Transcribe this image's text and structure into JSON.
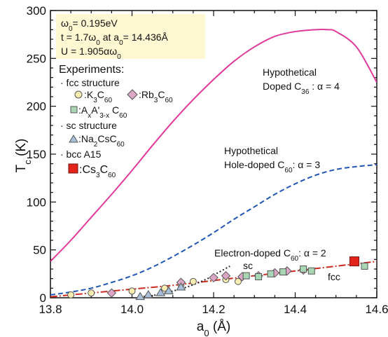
{
  "chart_data": {
    "type": "line",
    "xlabel": "a0 (Å)",
    "ylabel": "Tc (K)",
    "xlim": [
      13.8,
      14.6
    ],
    "ylim": [
      0,
      300
    ],
    "x_ticks": [
      "13.8",
      "14.0",
      "14.2",
      "14.4",
      "14.6"
    ],
    "y_ticks": [
      "0",
      "50",
      "100",
      "150",
      "200",
      "250",
      "300"
    ],
    "parameters": {
      "line1": "ω0= 0.195eV",
      "line2": "t = 1.7ω0  at  a0= 14.436Å",
      "line3": "U = 1.905αω0"
    },
    "legend": {
      "title": "Experiments:",
      "fcc_header": "· fcc structure",
      "k3c60": ":K3C60",
      "rb3c60": ":Rb3C60",
      "axa3c60": ":AxA'3-x C60",
      "sc_header": "· sc structure",
      "na2cs": ":Na2CsC60",
      "bcc_header": "· bcc A15",
      "cs3c60": ":Cs3C60"
    },
    "curve_labels": {
      "c36_line1": "Hypothetical",
      "c36_line2": "Doped C36 : α = 4",
      "hole_line1": "Hypothetical",
      "hole_line2": "Hole-doped C60: α = 3",
      "electron": "Electron-doped C60: α = 2",
      "sc": "sc",
      "fcc": "fcc"
    },
    "series": [
      {
        "id": "c36",
        "color": "#e0399b",
        "style": "solid",
        "x": [
          13.8,
          13.85,
          13.9,
          13.95,
          14.0,
          14.05,
          14.1,
          14.15,
          14.2,
          14.25,
          14.3,
          14.35,
          14.4,
          14.45,
          14.48,
          14.5,
          14.55,
          14.6
        ],
        "y": [
          38,
          60,
          84,
          108,
          133,
          159,
          184,
          207,
          228,
          247,
          262,
          273,
          278,
          280,
          280,
          278,
          262,
          225
        ]
      },
      {
        "id": "hole",
        "color": "#1f56b5",
        "style": "dashed",
        "x": [
          13.8,
          13.85,
          13.9,
          13.95,
          14.0,
          14.05,
          14.1,
          14.15,
          14.2,
          14.25,
          14.3,
          14.35,
          14.4,
          14.45,
          14.5,
          14.55,
          14.6
        ],
        "y": [
          3,
          6,
          10,
          16,
          23,
          32,
          43,
          55,
          68,
          82,
          95,
          108,
          119,
          128,
          134,
          137,
          139
        ]
      },
      {
        "id": "electron_fcc",
        "color": "#cc2a1e",
        "style": "dashdot",
        "x": [
          13.8,
          13.9,
          14.0,
          14.1,
          14.2,
          14.3,
          14.4,
          14.5,
          14.6
        ],
        "y": [
          1,
          5,
          9,
          13,
          18,
          23,
          28,
          33,
          38
        ]
      },
      {
        "id": "electron_sc",
        "color": "#222222",
        "style": "dotted",
        "x": [
          14.02,
          14.06,
          14.1,
          14.14,
          14.18,
          14.21,
          14.24
        ],
        "y": [
          1,
          3,
          7,
          12,
          19,
          26,
          33
        ]
      }
    ],
    "experiments": {
      "k3c60": {
        "marker": "circle",
        "color": "#f7edb0",
        "points": [
          [
            13.85,
            3
          ],
          [
            13.9,
            5
          ],
          [
            14.0,
            7
          ],
          [
            14.08,
            10
          ],
          [
            14.12,
            14
          ],
          [
            14.15,
            17
          ],
          [
            14.23,
            19
          ],
          [
            14.26,
            17
          ]
        ]
      },
      "rb3c60": {
        "marker": "diamond",
        "color": "#dca7c7",
        "points": [
          [
            13.95,
            5
          ],
          [
            14.12,
            16
          ],
          [
            14.2,
            21
          ],
          [
            14.23,
            23
          ],
          [
            14.27,
            22
          ],
          [
            14.31,
            23
          ],
          [
            14.35,
            26
          ],
          [
            14.38,
            28
          ],
          [
            14.42,
            29
          ]
        ]
      },
      "axa3c60": {
        "marker": "square",
        "color": "#a9d6b5",
        "points": [
          [
            14.28,
            23
          ],
          [
            14.31,
            22
          ],
          [
            14.34,
            25
          ],
          [
            14.37,
            27
          ],
          [
            14.42,
            30
          ],
          [
            14.44,
            28
          ],
          [
            14.57,
            33
          ]
        ]
      },
      "na2cs": {
        "marker": "triangle",
        "color": "#a7bfd9",
        "points": [
          [
            14.02,
            1
          ],
          [
            14.04,
            3
          ],
          [
            14.07,
            5
          ],
          [
            14.09,
            7
          ],
          [
            14.12,
            11
          ]
        ]
      },
      "cs3c60": {
        "marker": "square-filled",
        "color": "#e3241b",
        "points": [
          [
            14.545,
            38
          ]
        ]
      }
    }
  }
}
